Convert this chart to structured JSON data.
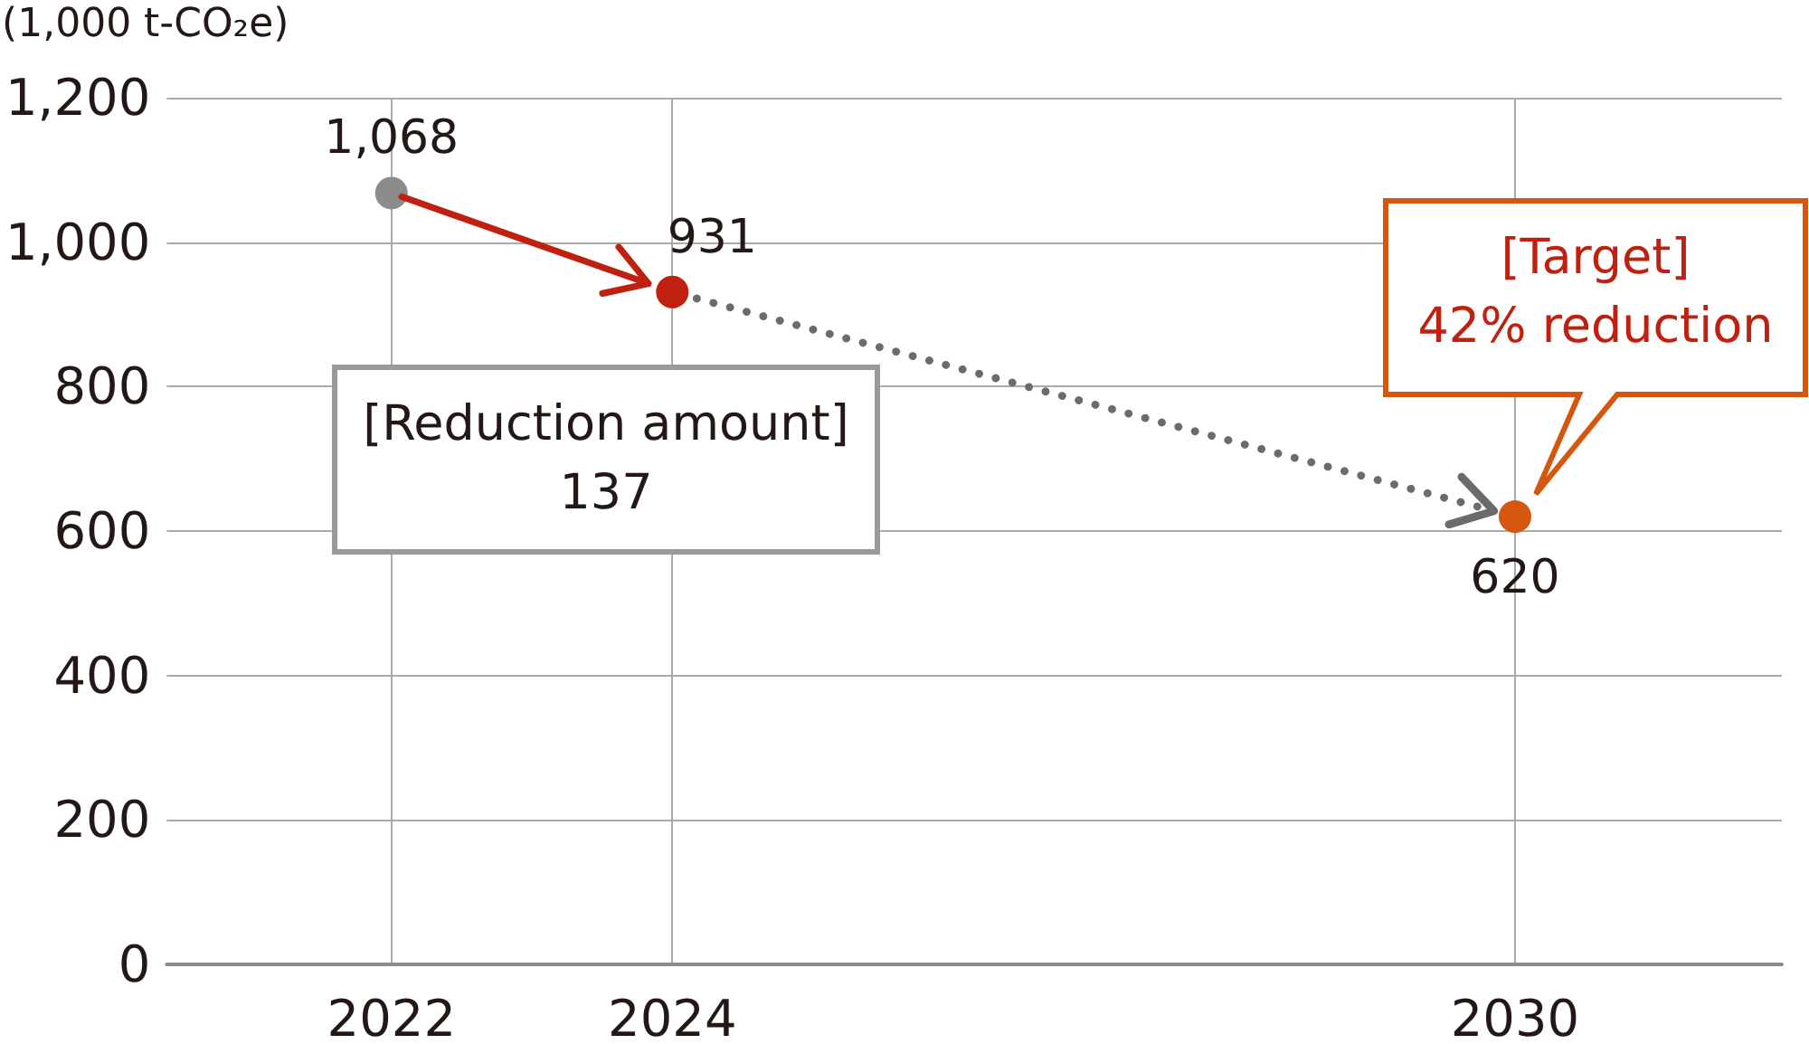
{
  "chart_data": {
    "type": "scatter",
    "ylabel": "(1,000 t-CO₂e)",
    "x": [
      2022,
      2024,
      2030
    ],
    "values": [
      1068,
      931,
      620
    ],
    "colors": [
      "#8c8c8c",
      "#c0200f",
      "#d4560f"
    ],
    "value_labels": [
      "1,068",
      "931",
      "620"
    ],
    "xlim": [
      2020.4,
      2031.9
    ],
    "xticks": [
      2022,
      2024,
      2030
    ],
    "ylim": [
      0,
      1200
    ],
    "yticks": [
      0,
      200,
      400,
      600,
      800,
      {
        "value": 1000,
        "label": "1,000"
      },
      {
        "value": 1200,
        "label": "1,200"
      }
    ],
    "grid": true,
    "marker": "circle",
    "annotations": [
      "[Reduction amount]\n137",
      "[Target]\n42% reduction"
    ]
  }
}
